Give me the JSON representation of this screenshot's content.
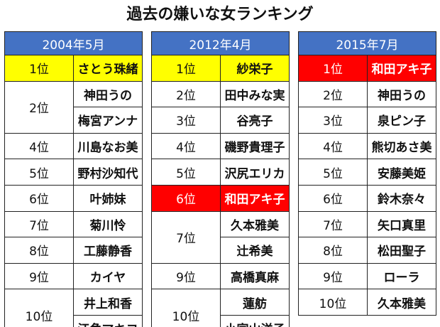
{
  "title": "過去の嫌いな女ランキング",
  "tables": [
    {
      "header": "2004年5月",
      "rows": [
        {
          "rank": "1位",
          "names": [
            "さとう珠緒"
          ],
          "highlight": "yellow"
        },
        {
          "rank": "2位",
          "names": [
            "神田うの",
            "梅宮アンナ"
          ]
        },
        {
          "rank": "4位",
          "names": [
            "川島なお美"
          ]
        },
        {
          "rank": "5位",
          "names": [
            "野村沙知代"
          ]
        },
        {
          "rank": "6位",
          "names": [
            "叶姉妹"
          ]
        },
        {
          "rank": "7位",
          "names": [
            "菊川怜"
          ]
        },
        {
          "rank": "8位",
          "names": [
            "工藤静香"
          ]
        },
        {
          "rank": "9位",
          "names": [
            "カイヤ"
          ]
        },
        {
          "rank": "10位",
          "names": [
            "井上和香",
            "江角マキコ"
          ]
        }
      ]
    },
    {
      "header": "2012年4月",
      "rows": [
        {
          "rank": "1位",
          "names": [
            "紗栄子"
          ],
          "highlight": "yellow"
        },
        {
          "rank": "2位",
          "names": [
            "田中みな実"
          ]
        },
        {
          "rank": "3位",
          "names": [
            "谷亮子"
          ]
        },
        {
          "rank": "4位",
          "names": [
            "磯野貴理子"
          ]
        },
        {
          "rank": "5位",
          "names": [
            "沢尻エリカ"
          ]
        },
        {
          "rank": "6位",
          "names": [
            "和田アキ子"
          ],
          "highlight": "red"
        },
        {
          "rank": "7位",
          "names": [
            "久本雅美",
            "辻希美"
          ]
        },
        {
          "rank": "9位",
          "names": [
            "高橋真麻"
          ]
        },
        {
          "rank": "10位",
          "names": [
            "蓮舫",
            "小宮山洋子"
          ]
        }
      ]
    },
    {
      "header": "2015年7月",
      "rows": [
        {
          "rank": "1位",
          "names": [
            "和田アキ子"
          ],
          "highlight": "red"
        },
        {
          "rank": "2位",
          "names": [
            "神田うの"
          ]
        },
        {
          "rank": "3位",
          "names": [
            "泉ピン子"
          ]
        },
        {
          "rank": "4位",
          "names": [
            "熊切あさ美"
          ]
        },
        {
          "rank": "5位",
          "names": [
            "安藤美姫"
          ]
        },
        {
          "rank": "6位",
          "names": [
            "鈴木奈々"
          ]
        },
        {
          "rank": "7位",
          "names": [
            "矢口真里"
          ]
        },
        {
          "rank": "8位",
          "names": [
            "松田聖子"
          ]
        },
        {
          "rank": "9位",
          "names": [
            "ローラ"
          ]
        },
        {
          "rank": "10位",
          "names": [
            "久本雅美"
          ]
        }
      ]
    }
  ],
  "colors": {
    "header_bg": "#4472c4",
    "highlight_yellow": "#ffff00",
    "highlight_red": "#ff0000"
  }
}
